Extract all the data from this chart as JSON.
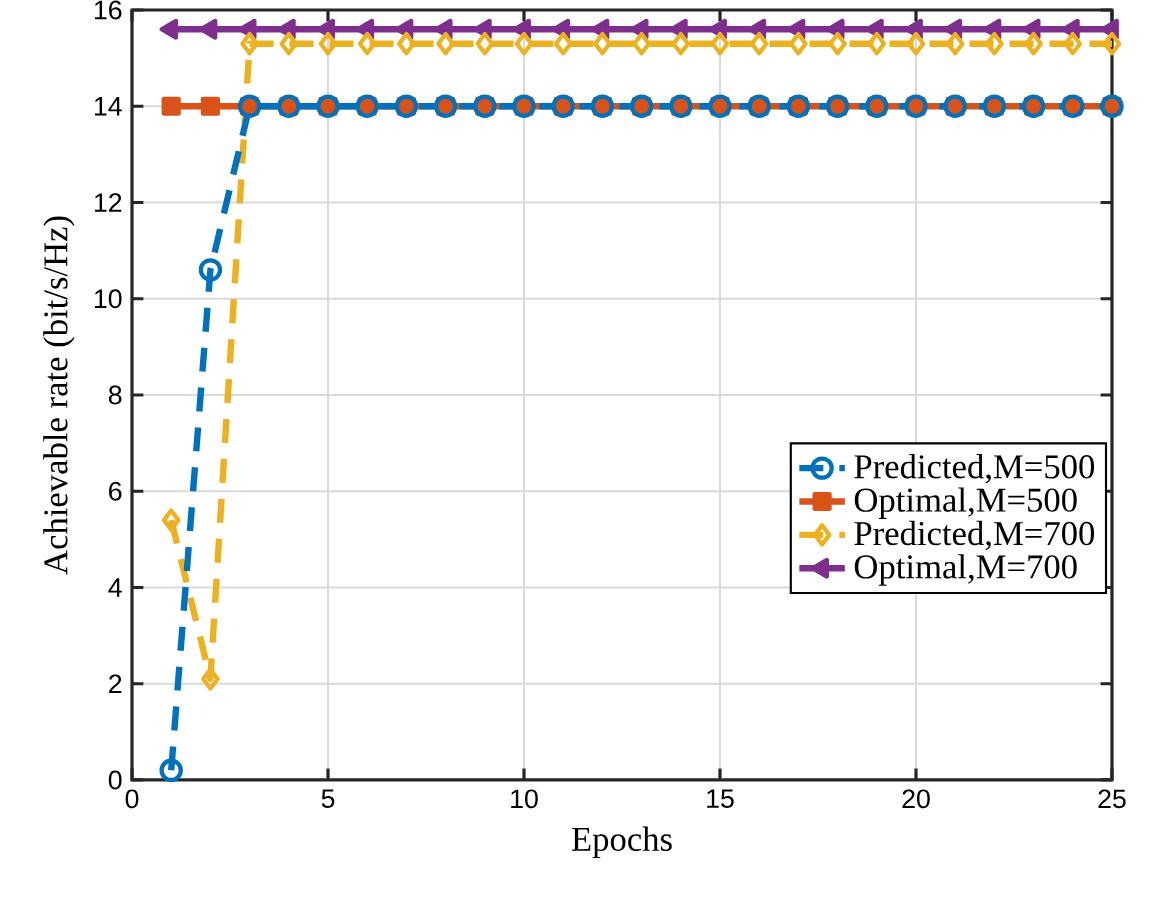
{
  "chart_data": {
    "type": "line",
    "xlabel": "Epochs",
    "ylabel": "Achievable rate (bit/s/Hz)",
    "x": [
      1,
      2,
      3,
      4,
      5,
      6,
      7,
      8,
      9,
      10,
      11,
      12,
      13,
      14,
      15,
      16,
      17,
      18,
      19,
      20,
      21,
      22,
      23,
      24,
      25
    ],
    "series": [
      {
        "name": "Predicted,M=500",
        "color": "#0072bd",
        "marker": "circle",
        "line_style": "dashed",
        "values": [
          0.2,
          10.6,
          14,
          14,
          14,
          14,
          14,
          14,
          14,
          14,
          14,
          14,
          14,
          14,
          14,
          14,
          14,
          14,
          14,
          14,
          14,
          14,
          14,
          14,
          14
        ]
      },
      {
        "name": "Optimal,M=500",
        "color": "#d95319",
        "marker": "square",
        "line_style": "solid",
        "values": [
          14,
          14,
          14,
          14,
          14,
          14,
          14,
          14,
          14,
          14,
          14,
          14,
          14,
          14,
          14,
          14,
          14,
          14,
          14,
          14,
          14,
          14,
          14,
          14,
          14
        ]
      },
      {
        "name": "Predicted,M=700",
        "color": "#edb120",
        "marker": "diamond",
        "line_style": "dashed",
        "values": [
          5.4,
          2.1,
          15.3,
          15.3,
          15.3,
          15.3,
          15.3,
          15.3,
          15.3,
          15.3,
          15.3,
          15.3,
          15.3,
          15.3,
          15.3,
          15.3,
          15.3,
          15.3,
          15.3,
          15.3,
          15.3,
          15.3,
          15.3,
          15.3,
          15.3
        ]
      },
      {
        "name": "Optimal,M=700",
        "color": "#7e2f8e",
        "marker": "triangle",
        "line_style": "solid",
        "values": [
          15.6,
          15.6,
          15.6,
          15.6,
          15.6,
          15.6,
          15.6,
          15.6,
          15.6,
          15.6,
          15.6,
          15.6,
          15.6,
          15.6,
          15.6,
          15.6,
          15.6,
          15.6,
          15.6,
          15.6,
          15.6,
          15.6,
          15.6,
          15.6,
          15.6
        ]
      }
    ],
    "xlim": [
      0,
      25
    ],
    "ylim": [
      0,
      16
    ],
    "xticks": [
      0,
      5,
      10,
      15,
      20,
      25
    ],
    "yticks": [
      0,
      2,
      4,
      6,
      8,
      10,
      12,
      14,
      16
    ],
    "grid": true,
    "legend": "right"
  }
}
